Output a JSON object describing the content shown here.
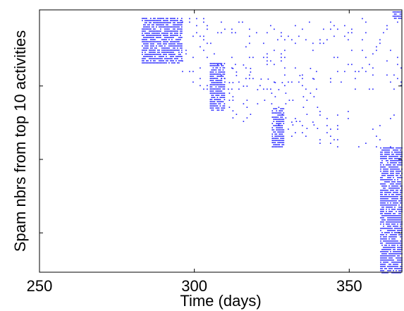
{
  "chart_data": {
    "type": "scatter",
    "title": "",
    "xlabel": "Time (days)",
    "ylabel": "Spam nbrs from top 10 activities",
    "xlim": [
      250,
      367
    ],
    "ylim": [
      0,
      100
    ],
    "x_ticks": [
      250,
      300,
      350
    ],
    "x_tick_labels": [
      "250",
      "300",
      "350"
    ],
    "y_ticks": [
      15,
      43,
      71
    ],
    "y_tick_labels": [
      "",
      "",
      ""
    ],
    "grid": false,
    "legend": "none",
    "marker_color": "#1a1aff",
    "series": [
      {
        "clusters": [
          {
            "x_range": [
              283,
              296
            ],
            "y_range": [
              80,
              97
            ],
            "density": "high"
          },
          {
            "x_range": [
              296,
              367
            ],
            "y_range": [
              70,
              97
            ],
            "density": "low"
          },
          {
            "x_range": [
              305,
              310
            ],
            "y_range": [
              62,
              80
            ],
            "density": "high"
          },
          {
            "x_range": [
              310,
              340
            ],
            "y_range": [
              55,
              80
            ],
            "density": "low"
          },
          {
            "x_range": [
              325,
              329
            ],
            "y_range": [
              48,
              63
            ],
            "density": "high"
          },
          {
            "x_range": [
              329,
              365
            ],
            "y_range": [
              48,
              62
            ],
            "density": "low"
          },
          {
            "x_range": [
              360,
              367
            ],
            "y_range": [
              0,
              48
            ],
            "density": "high"
          },
          {
            "x_range": [
              364,
              367
            ],
            "y_range": [
              97,
              100
            ],
            "density": "high"
          }
        ]
      }
    ]
  }
}
